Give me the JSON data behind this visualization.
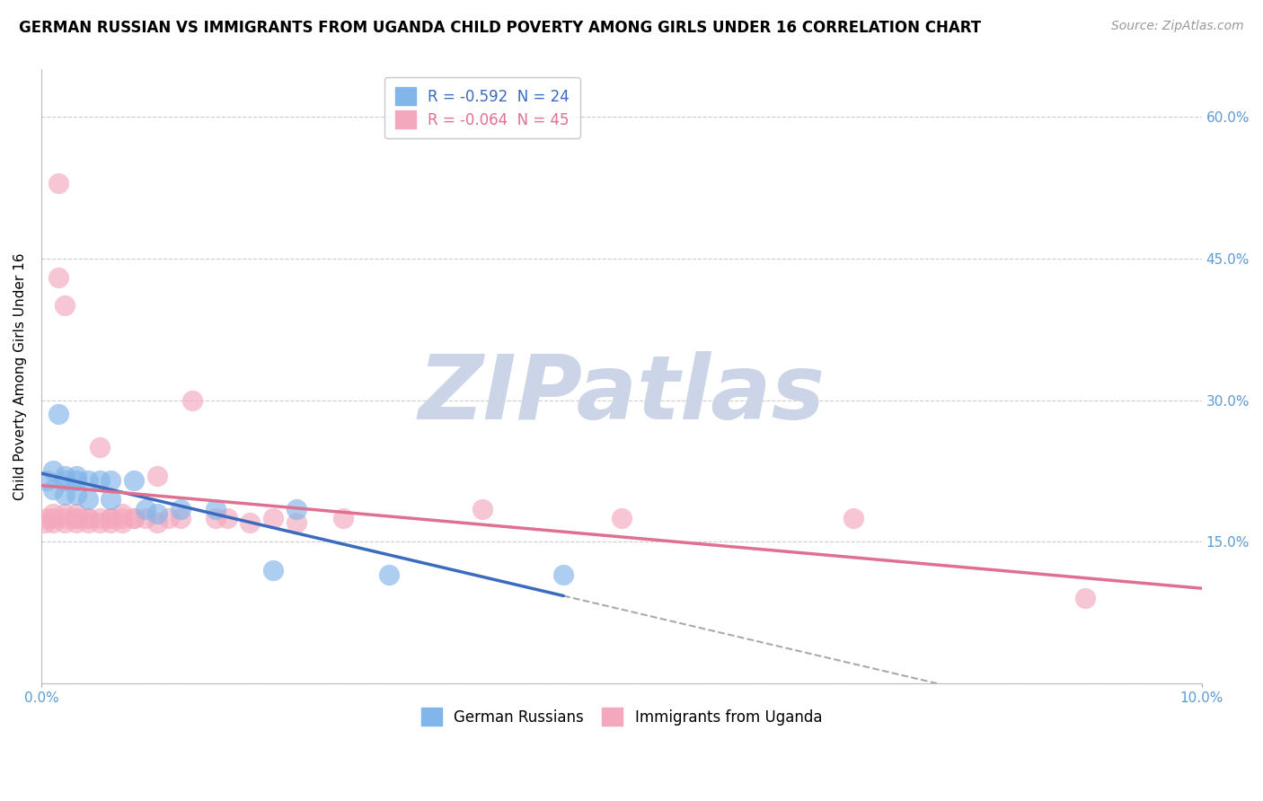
{
  "title": "GERMAN RUSSIAN VS IMMIGRANTS FROM UGANDA CHILD POVERTY AMONG GIRLS UNDER 16 CORRELATION CHART",
  "source": "Source: ZipAtlas.com",
  "ylabel": "Child Poverty Among Girls Under 16",
  "xlim": [
    0.0,
    0.1
  ],
  "ylim": [
    0.0,
    0.65
  ],
  "yticks": [
    0.0,
    0.15,
    0.3,
    0.45,
    0.6
  ],
  "ytick_labels": [
    "",
    "15.0%",
    "30.0%",
    "45.0%",
    "60.0%"
  ],
  "xtick_labels": [
    "0.0%",
    "10.0%"
  ],
  "background_color": "#ffffff",
  "grid_color": "#cccccc",
  "watermark": "ZIPatlas",
  "watermark_color": "#ccd5e8",
  "blue_label": "German Russians",
  "pink_label": "Immigrants from Uganda",
  "blue_R": -0.592,
  "blue_N": 24,
  "pink_R": -0.064,
  "pink_N": 45,
  "blue_color": "#82b5e9",
  "pink_color": "#f4a8be",
  "blue_line_color": "#3a6bbf",
  "pink_line_color": "#e07090",
  "blue_x": [
    0.0005,
    0.001,
    0.001,
    0.0015,
    0.002,
    0.002,
    0.002,
    0.003,
    0.003,
    0.003,
    0.004,
    0.004,
    0.005,
    0.006,
    0.006,
    0.008,
    0.009,
    0.01,
    0.012,
    0.015,
    0.02,
    0.022,
    0.03,
    0.045
  ],
  "blue_y": [
    0.215,
    0.225,
    0.205,
    0.285,
    0.22,
    0.215,
    0.2,
    0.22,
    0.215,
    0.2,
    0.215,
    0.195,
    0.215,
    0.215,
    0.195,
    0.215,
    0.185,
    0.18,
    0.185,
    0.185,
    0.12,
    0.185,
    0.115,
    0.115
  ],
  "pink_x": [
    0.0003,
    0.0005,
    0.001,
    0.001,
    0.001,
    0.0015,
    0.0015,
    0.002,
    0.002,
    0.002,
    0.002,
    0.003,
    0.003,
    0.003,
    0.003,
    0.004,
    0.004,
    0.004,
    0.005,
    0.005,
    0.005,
    0.006,
    0.006,
    0.006,
    0.007,
    0.007,
    0.007,
    0.008,
    0.008,
    0.009,
    0.01,
    0.01,
    0.011,
    0.012,
    0.013,
    0.015,
    0.016,
    0.018,
    0.02,
    0.022,
    0.026,
    0.038,
    0.05,
    0.07,
    0.09
  ],
  "pink_y": [
    0.17,
    0.175,
    0.17,
    0.18,
    0.175,
    0.53,
    0.43,
    0.4,
    0.175,
    0.18,
    0.17,
    0.175,
    0.17,
    0.18,
    0.175,
    0.175,
    0.17,
    0.175,
    0.25,
    0.175,
    0.17,
    0.175,
    0.17,
    0.175,
    0.175,
    0.17,
    0.18,
    0.175,
    0.175,
    0.175,
    0.17,
    0.22,
    0.175,
    0.175,
    0.3,
    0.175,
    0.175,
    0.17,
    0.175,
    0.17,
    0.175,
    0.185,
    0.175,
    0.175,
    0.09
  ],
  "title_fontsize": 12,
  "source_fontsize": 10,
  "legend_fontsize": 12,
  "axis_label_fontsize": 11,
  "tick_fontsize": 11
}
